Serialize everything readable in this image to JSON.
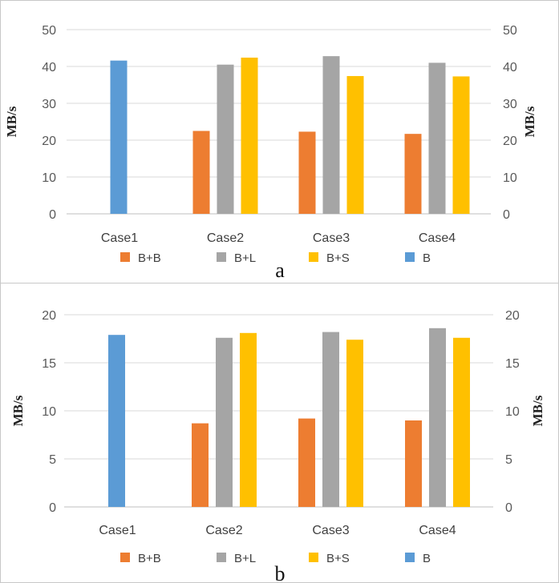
{
  "chart_data": [
    {
      "type": "bar",
      "panel_label": "a",
      "categories": [
        "Case1",
        "Case2",
        "Case3",
        "Case4"
      ],
      "series": [
        {
          "name": "B+B",
          "color": "#ED7D31",
          "values": [
            null,
            22.5,
            22.3,
            21.7
          ]
        },
        {
          "name": "B+L",
          "color": "#A5A5A5",
          "values": [
            null,
            40.5,
            42.8,
            41.0
          ]
        },
        {
          "name": "B+S",
          "color": "#FFC000",
          "values": [
            null,
            42.4,
            37.4,
            37.3
          ]
        },
        {
          "name": "B",
          "color": "#5B9BD5",
          "values": [
            41.6,
            null,
            null,
            null
          ]
        }
      ],
      "ylabel": "MB/s",
      "y2label": "MB/s",
      "ylim": [
        0,
        50
      ],
      "yticks": [
        0,
        10,
        20,
        30,
        40,
        50
      ],
      "grid": true,
      "legend": "bottom"
    },
    {
      "type": "bar",
      "panel_label": "b",
      "categories": [
        "Case1",
        "Case2",
        "Case3",
        "Case4"
      ],
      "series": [
        {
          "name": "B+B",
          "color": "#ED7D31",
          "values": [
            null,
            8.7,
            9.2,
            9.0
          ]
        },
        {
          "name": "B+L",
          "color": "#A5A5A5",
          "values": [
            null,
            17.6,
            18.2,
            18.6
          ]
        },
        {
          "name": "B+S",
          "color": "#FFC000",
          "values": [
            null,
            18.1,
            17.4,
            17.6
          ]
        },
        {
          "name": "B",
          "color": "#5B9BD5",
          "values": [
            17.9,
            null,
            null,
            null
          ]
        }
      ],
      "ylabel": "MB/s",
      "y2label": "MB/s",
      "ylim": [
        0,
        20
      ],
      "yticks": [
        0,
        5,
        10,
        15,
        20
      ],
      "grid": true,
      "legend": "bottom"
    }
  ]
}
